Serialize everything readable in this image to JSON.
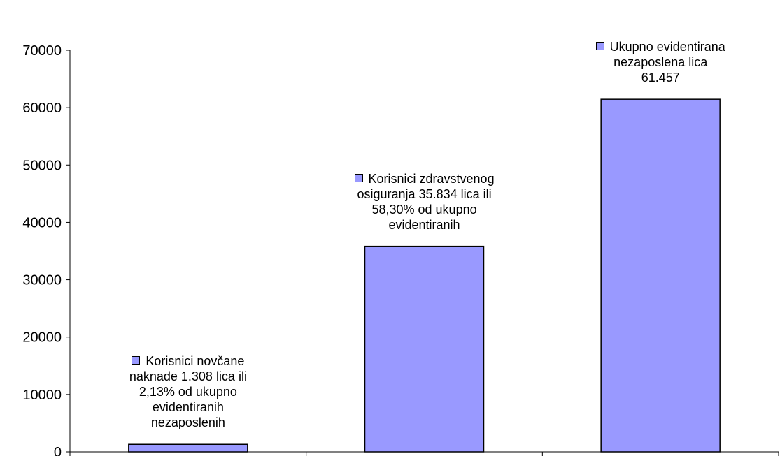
{
  "chart_data": {
    "type": "bar",
    "title": "",
    "xlabel": "",
    "ylabel": "",
    "ylim": [
      0,
      70000
    ],
    "yticks": [
      0,
      10000,
      20000,
      30000,
      40000,
      50000,
      60000,
      70000
    ],
    "categories": [
      "",
      "",
      ""
    ],
    "values": [
      1308,
      35834,
      61457
    ],
    "grid": false,
    "bar_color": "#9999ff",
    "bar_border_color": "#000000",
    "data_labels": [
      [
        "Korisnici novčane",
        "naknade 1.308 lica ili",
        "2,13% od ukupno",
        "evidentiranih",
        "nezaposlenih"
      ],
      [
        "Korisnici zdravstvenog",
        "osiguranja 35.834 lica ili",
        "58,30% od ukupno",
        "evidentiranih"
      ],
      [
        "Ukupno evidentirana",
        "nezaposlena lica",
        "61.457"
      ]
    ]
  }
}
